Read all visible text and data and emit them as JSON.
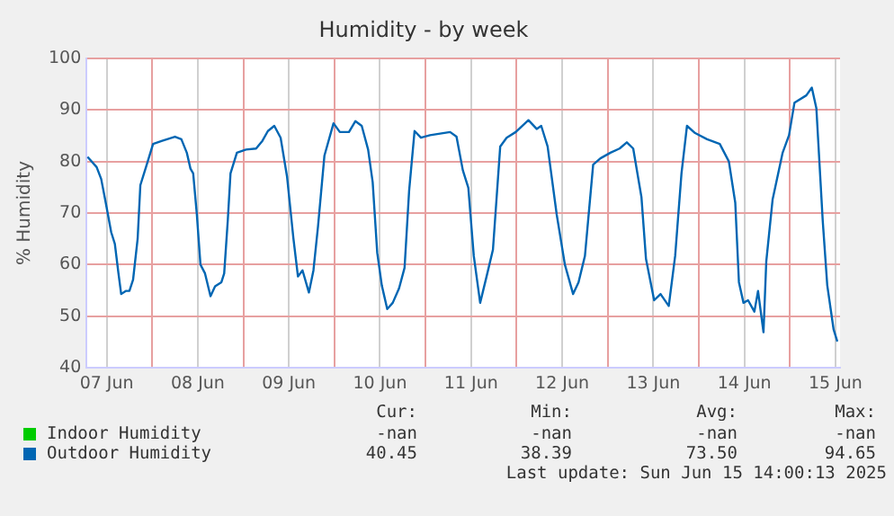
{
  "chart_data": {
    "type": "line",
    "title": "Humidity - by week",
    "ylabel": "% Humidity",
    "xlim": [
      "2025-06-07T06:43",
      "2025-06-15T13:12"
    ],
    "xticks": [
      {
        "value": "2025-06-07T12:00",
        "label": "07 Jun"
      },
      {
        "value": "2025-06-08T00:00",
        "label": null
      },
      {
        "value": "2025-06-08T12:00",
        "label": "08 Jun"
      },
      {
        "value": "2025-06-09T00:00",
        "label": null
      },
      {
        "value": "2025-06-09T12:00",
        "label": "09 Jun"
      },
      {
        "value": "2025-06-10T00:00",
        "label": null
      },
      {
        "value": "2025-06-10T12:00",
        "label": "10 Jun"
      },
      {
        "value": "2025-06-11T00:00",
        "label": null
      },
      {
        "value": "2025-06-11T12:00",
        "label": "11 Jun"
      },
      {
        "value": "2025-06-12T00:00",
        "label": null
      },
      {
        "value": "2025-06-12T12:00",
        "label": "12 Jun"
      },
      {
        "value": "2025-06-13T00:00",
        "label": null
      },
      {
        "value": "2025-06-13T12:00",
        "label": "13 Jun"
      },
      {
        "value": "2025-06-14T00:00",
        "label": null
      },
      {
        "value": "2025-06-14T12:00",
        "label": "14 Jun"
      },
      {
        "value": "2025-06-15T00:00",
        "label": null
      },
      {
        "value": "2025-06-15T12:00",
        "label": "15 Jun"
      }
    ],
    "ylim": [
      40,
      100
    ],
    "yticks": [
      40,
      50,
      60,
      70,
      80,
      90,
      100
    ],
    "grid": true,
    "legend": "bottom",
    "marker": "none",
    "series": [
      {
        "name": "Indoor Humidity",
        "color": "#00cc00"
      },
      {
        "name": "Outdoor Humidity",
        "color": "#0066b3",
        "x": [
          "2025-06-07T06:58",
          "2025-06-07T09:22",
          "2025-06-07T10:34",
          "2025-06-07T11:46",
          "2025-06-07T13:12",
          "2025-06-07T14:10",
          "2025-06-07T15:07",
          "2025-06-07T15:50",
          "2025-06-07T17:02",
          "2025-06-07T18:00",
          "2025-06-07T18:58",
          "2025-06-07T20:10",
          "2025-06-07T20:53",
          "2025-06-07T22:34",
          "2025-06-08T00:14",
          "2025-06-08T02:38",
          "2025-06-08T06:00",
          "2025-06-08T07:41",
          "2025-06-08T09:07",
          "2025-06-08T10:05",
          "2025-06-08T10:48",
          "2025-06-08T11:46",
          "2025-06-08T12:43",
          "2025-06-08T13:55",
          "2025-06-08T15:22",
          "2025-06-08T16:34",
          "2025-06-08T18:14",
          "2025-06-08T18:58",
          "2025-06-08T19:55",
          "2025-06-08T20:38",
          "2025-06-08T22:19",
          "2025-06-09T00:43",
          "2025-06-09T03:22",
          "2025-06-09T05:02",
          "2025-06-09T06:29",
          "2025-06-09T08:10",
          "2025-06-09T09:50",
          "2025-06-09T11:31",
          "2025-06-09T13:12",
          "2025-06-09T14:24",
          "2025-06-09T15:36",
          "2025-06-09T17:17",
          "2025-06-09T18:29",
          "2025-06-09T19:41",
          "2025-06-09T21:22",
          "2025-06-09T23:46",
          "2025-06-10T01:26",
          "2025-06-10T03:50",
          "2025-06-10T05:31",
          "2025-06-10T07:12",
          "2025-06-10T08:53",
          "2025-06-10T10:05",
          "2025-06-10T11:17",
          "2025-06-10T12:29",
          "2025-06-10T13:55",
          "2025-06-10T15:22",
          "2025-06-10T17:02",
          "2025-06-10T18:29",
          "2025-06-10T19:41",
          "2025-06-10T21:07",
          "2025-06-10T22:48",
          "2025-06-11T01:12",
          "2025-06-11T06:29",
          "2025-06-11T08:10",
          "2025-06-11T09:50",
          "2025-06-11T11:17",
          "2025-06-11T12:43",
          "2025-06-11T14:24",
          "2025-06-11T16:05",
          "2025-06-11T17:46",
          "2025-06-11T19:41",
          "2025-06-11T21:22",
          "2025-06-11T23:46",
          "2025-06-12T03:07",
          "2025-06-12T05:17",
          "2025-06-12T06:29",
          "2025-06-12T08:10",
          "2025-06-12T10:34",
          "2025-06-12T12:43",
          "2025-06-12T14:53",
          "2025-06-12T16:19",
          "2025-06-12T18:00",
          "2025-06-12T20:10",
          "2025-06-12T22:05",
          "2025-06-13T00:43",
          "2025-06-13T03:07",
          "2025-06-13T05:02",
          "2025-06-13T06:43",
          "2025-06-13T08:53",
          "2025-06-13T10:05",
          "2025-06-13T12:14",
          "2025-06-13T13:55",
          "2025-06-13T16:05",
          "2025-06-13T17:46",
          "2025-06-13T19:26",
          "2025-06-13T20:53",
          "2025-06-13T23:02",
          "2025-06-14T02:10",
          "2025-06-14T05:31",
          "2025-06-14T07:55",
          "2025-06-14T09:36",
          "2025-06-14T10:34",
          "2025-06-14T11:46",
          "2025-06-14T12:58",
          "2025-06-14T14:38",
          "2025-06-14T15:36",
          "2025-06-14T17:02",
          "2025-06-14T17:46",
          "2025-06-14T19:26",
          "2025-06-14T22:05",
          "2025-06-14T23:46",
          "2025-06-15T01:12",
          "2025-06-15T04:19",
          "2025-06-15T05:46",
          "2025-06-15T06:58",
          "2025-06-15T08:38",
          "2025-06-15T09:50",
          "2025-06-15T11:31",
          "2025-06-15T12:29"
        ],
        "values": [
          80.9,
          78.9,
          76.6,
          72,
          66.3,
          64,
          58.3,
          54.3,
          54.9,
          54.9,
          57.1,
          65,
          75.4,
          79.4,
          83.4,
          84,
          84.8,
          84.3,
          81.7,
          78.6,
          77.7,
          69.7,
          60,
          58.3,
          53.9,
          55.8,
          56.6,
          58.3,
          68.6,
          77.7,
          81.7,
          82.3,
          82.5,
          84,
          85.9,
          86.9,
          84.6,
          77.1,
          65.1,
          57.7,
          58.9,
          54.6,
          58.9,
          67.4,
          81.1,
          87.4,
          85.7,
          85.7,
          87.8,
          86.9,
          82.3,
          76,
          62.3,
          56,
          51.4,
          52.6,
          55.4,
          59.4,
          74.3,
          85.9,
          84.6,
          85.1,
          85.7,
          84.8,
          78.3,
          74.9,
          61.7,
          52.6,
          57.7,
          62.9,
          82.9,
          84.6,
          85.7,
          88,
          86.3,
          86.9,
          82.9,
          69.7,
          60,
          54.3,
          56.6,
          61.7,
          79.4,
          80.6,
          81.7,
          82.5,
          83.7,
          82.5,
          73.1,
          61.1,
          53.1,
          54.3,
          52,
          61.7,
          77.7,
          86.9,
          85.5,
          84.3,
          83.4,
          80,
          72,
          56.6,
          52.6,
          53.1,
          50.9,
          54.9,
          46.9,
          60.6,
          72.6,
          81.7,
          85.1,
          91.4,
          92.8,
          94.3,
          90.3,
          68.6,
          56,
          47.4,
          45.1
        ]
      }
    ],
    "annotations": [
      "Cur:",
      "Min:",
      "Avg:",
      "Max:",
      "-nan",
      "-nan",
      "-nan",
      "-nan",
      "40.45",
      "38.39",
      "73.50",
      "94.65",
      "Last update: Sun Jun 15 14:00:13 2025"
    ]
  }
}
